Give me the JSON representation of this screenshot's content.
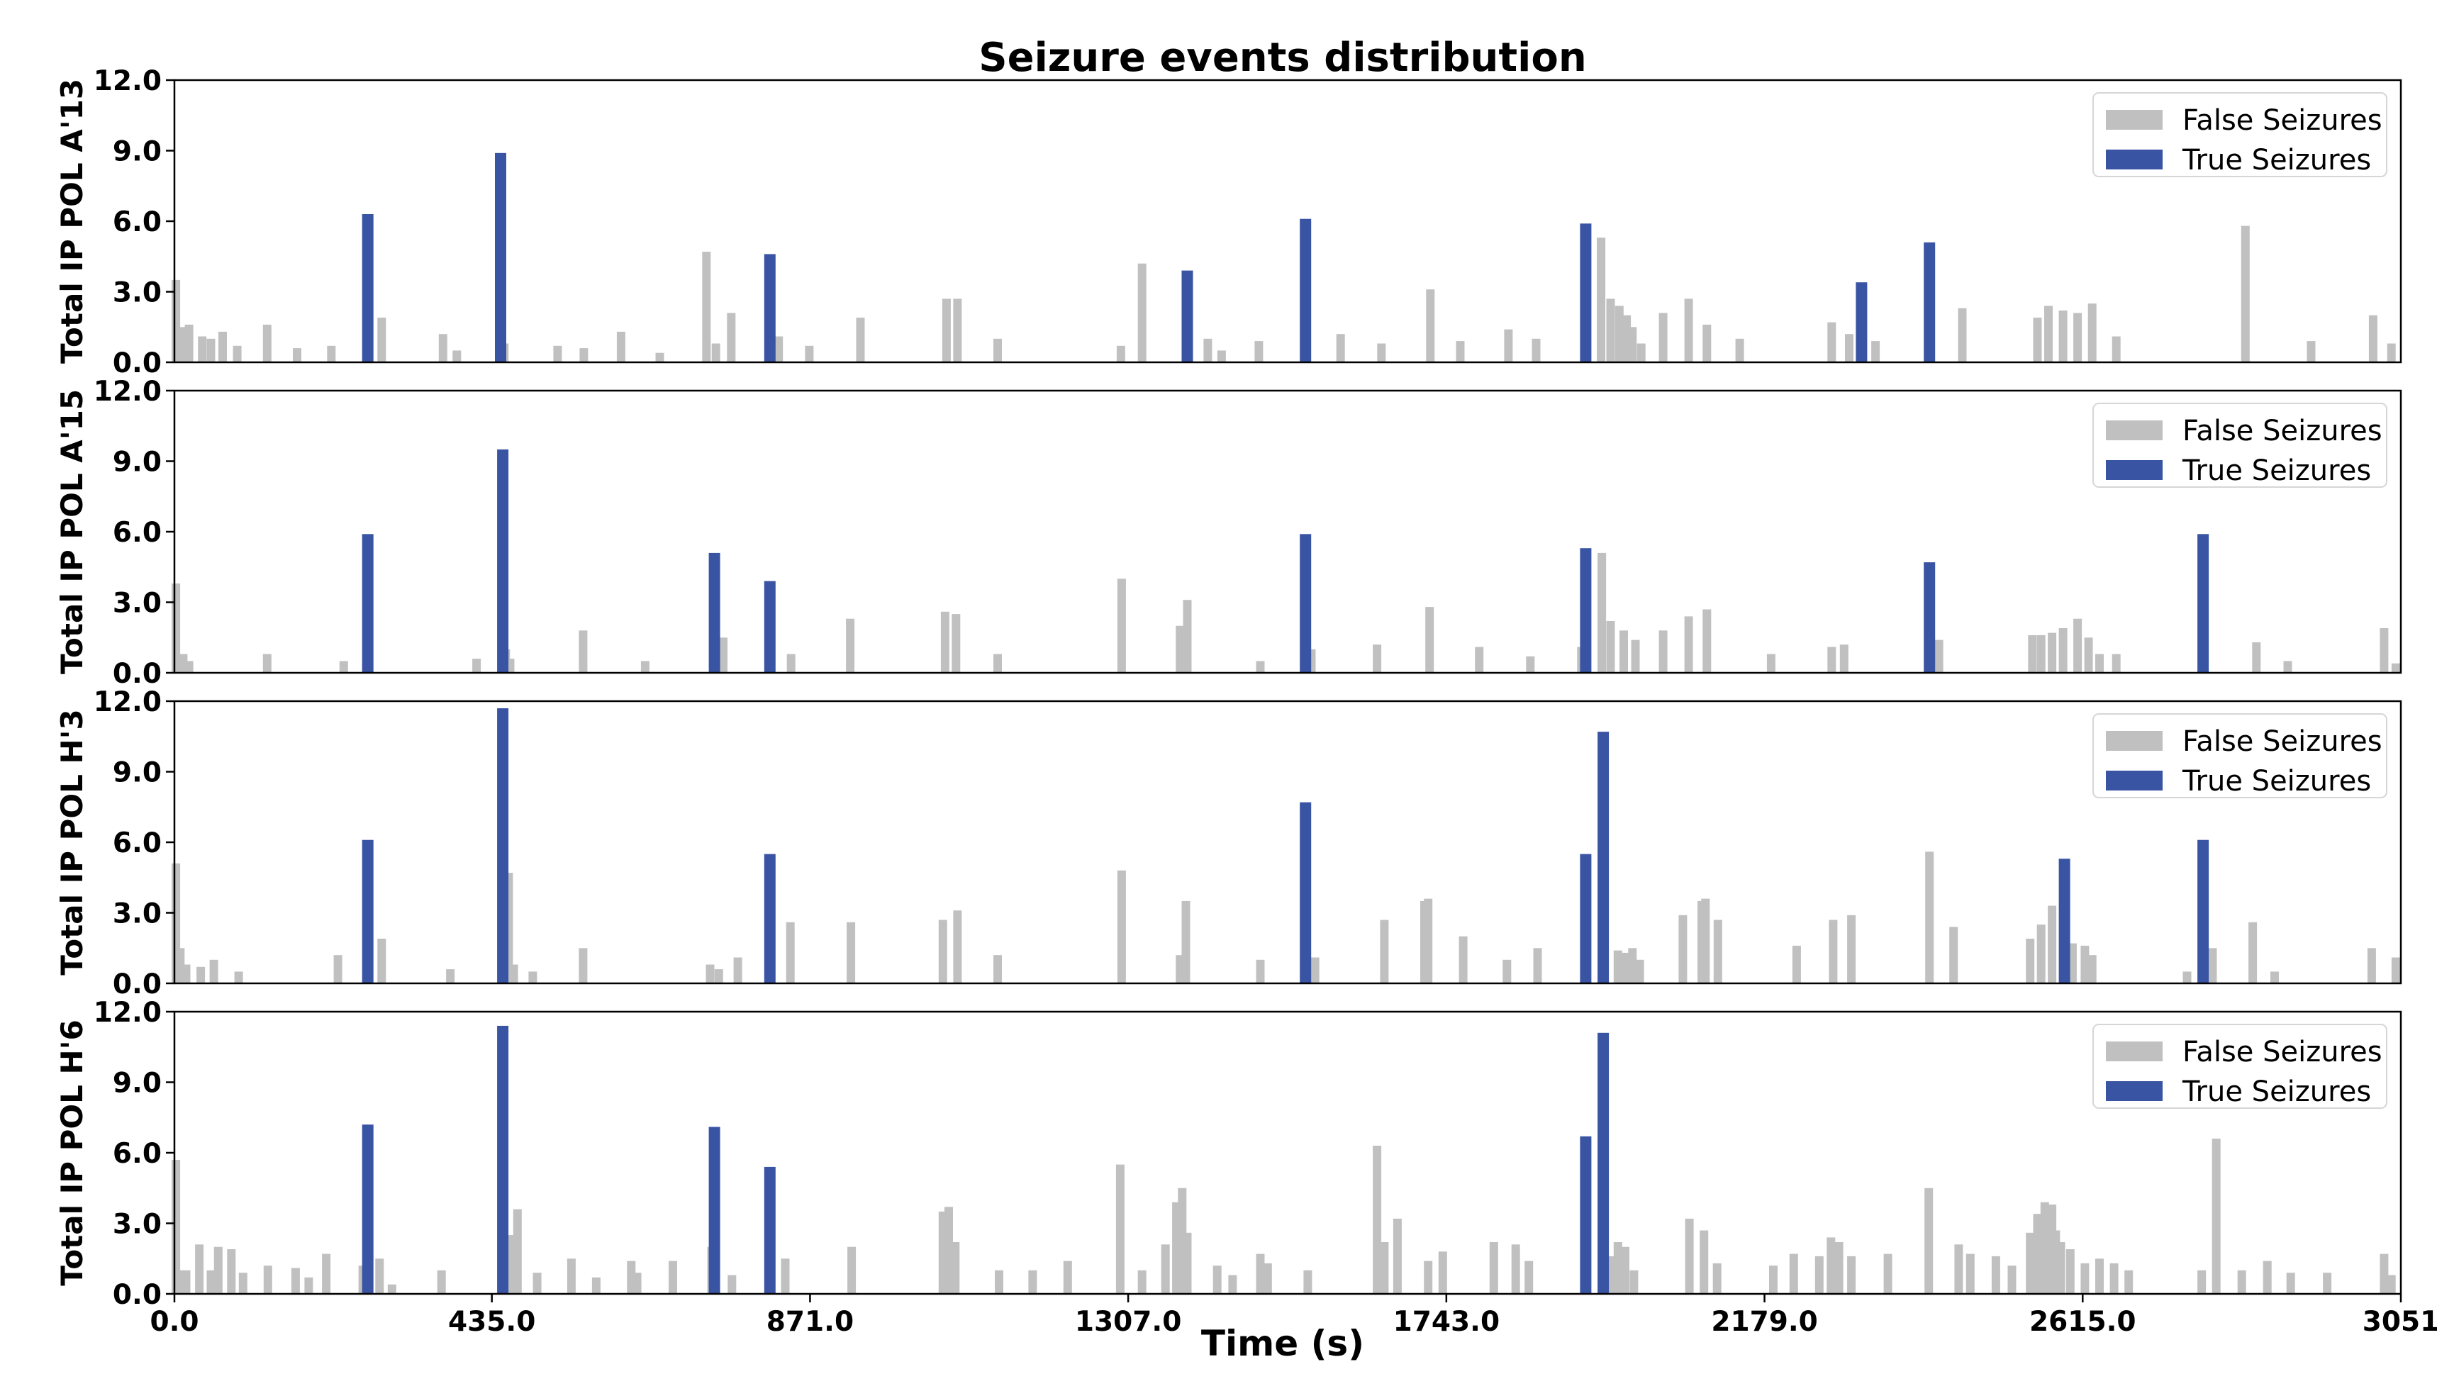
{
  "chart_data": {
    "type": "bar",
    "title": "Seizure events distribution",
    "xlabel": "Time (s)",
    "xlim": [
      0,
      3051
    ],
    "xticks": [
      "0.0",
      "435.0",
      "871.0",
      "1307.0",
      "1743.0",
      "2179.0",
      "2615.0",
      "3051"
    ],
    "ylim": [
      0,
      12
    ],
    "yticks": [
      "0.0",
      "3.0",
      "6.0",
      "9.0",
      "12.0"
    ],
    "grid": false,
    "legend_position": "top-right",
    "legend": [
      "False Seizures",
      "True Seizures"
    ],
    "colors": {
      "false": "#c0c0c0",
      "true": "#3a54a4"
    },
    "subplots": [
      {
        "ylabel": "Total IP POL A'13",
        "true_seizures": {
          "x": [
            265,
            447,
            816,
            1388,
            1550,
            1934,
            2312,
            2405
          ],
          "values": [
            6.3,
            8.9,
            4.6,
            3.9,
            6.1,
            5.9,
            3.4,
            5.1
          ]
        },
        "false_seizures": {
          "x": [
            4,
            14,
            22,
            40,
            52,
            68,
            88,
            129,
            170,
            217,
            286,
            370,
            389,
            454,
            527,
            563,
            614,
            667,
            731,
            744,
            765,
            830,
            872,
            942,
            1060,
            1075,
            1130,
            1299,
            1328,
            1418,
            1437,
            1488,
            1600,
            1656,
            1723,
            1764,
            1830,
            1868,
            1957,
            1970,
            1982,
            1992,
            2000,
            2012,
            2042,
            2077,
            2102,
            2147,
            2273,
            2297,
            2333,
            2452,
            2555,
            2570,
            2590,
            2610,
            2630,
            2663,
            2840,
            2930,
            3015,
            3040
          ],
          "values": [
            3.5,
            1.5,
            1.6,
            1.1,
            1.0,
            1.3,
            0.7,
            1.6,
            0.6,
            0.7,
            1.9,
            1.2,
            0.5,
            0.8,
            0.7,
            0.6,
            1.3,
            0.4,
            4.7,
            0.8,
            2.1,
            1.1,
            0.7,
            1.9,
            2.7,
            2.7,
            1.0,
            0.7,
            4.2,
            1.0,
            0.5,
            0.9,
            1.2,
            0.8,
            3.1,
            0.9,
            1.4,
            1.0,
            5.3,
            2.7,
            2.4,
            2.0,
            1.5,
            0.8,
            2.1,
            2.7,
            1.6,
            1.0,
            1.7,
            1.2,
            0.9,
            2.3,
            1.9,
            2.4,
            2.2,
            2.1,
            2.5,
            1.1,
            5.8,
            0.9,
            2.0,
            0.8
          ]
        }
      },
      {
        "ylabel": "Total IP POL A'15",
        "true_seizures": {
          "x": [
            265,
            450,
            740,
            816,
            1550,
            1934,
            2405,
            2780
          ],
          "values": [
            5.9,
            9.5,
            5.1,
            3.9,
            5.9,
            5.3,
            4.7,
            5.9
          ]
        },
        "false_seizures": {
          "x": [
            4,
            14,
            22,
            129,
            234,
            416,
            456,
            462,
            562,
            647,
            754,
            847,
            928,
            1058,
            1073,
            1130,
            1300,
            1380,
            1390,
            1490,
            1560,
            1650,
            1722,
            1790,
            1860,
            1930,
            1958,
            1970,
            1988,
            2004,
            2042,
            2077,
            2102,
            2190,
            2273,
            2290,
            2420,
            2548,
            2560,
            2575,
            2590,
            2610,
            2625,
            2640,
            2663,
            2855,
            2898,
            3030,
            3046
          ],
          "values": [
            3.8,
            0.8,
            0.5,
            0.8,
            0.5,
            0.6,
            1.0,
            0.6,
            1.8,
            0.5,
            1.5,
            0.8,
            2.3,
            2.6,
            2.5,
            0.8,
            4.0,
            2.0,
            3.1,
            0.5,
            1.0,
            1.2,
            2.8,
            1.1,
            0.7,
            1.1,
            5.1,
            2.2,
            1.8,
            1.4,
            1.8,
            2.4,
            2.7,
            0.8,
            1.1,
            1.2,
            1.4,
            1.6,
            1.6,
            1.7,
            1.9,
            2.3,
            1.5,
            0.8,
            0.8,
            1.3,
            0.5,
            1.9,
            0.4
          ]
        }
      },
      {
        "ylabel": "Total IP POL H'3",
        "true_seizures": {
          "x": [
            265,
            450,
            816,
            1550,
            1934,
            1958,
            2590,
            2780
          ],
          "values": [
            6.1,
            11.7,
            5.5,
            7.7,
            5.5,
            10.7,
            5.3,
            6.1
          ]
        },
        "false_seizures": {
          "x": [
            4,
            10,
            18,
            38,
            56,
            90,
            226,
            286,
            380,
            460,
            467,
            493,
            562,
            736,
            748,
            774,
            846,
            929,
            1055,
            1075,
            1130,
            1300,
            1380,
            1388,
            1490,
            1565,
            1660,
            1715,
            1720,
            1768,
            1828,
            1870,
            1980,
            1990,
            2000,
            2010,
            2069,
            2095,
            2100,
            2117,
            2225,
            2275,
            2300,
            2407,
            2440,
            2545,
            2560,
            2575,
            2603,
            2620,
            2630,
            2760,
            2795,
            2850,
            2880,
            3013,
            3046
          ],
          "values": [
            5.1,
            1.5,
            0.8,
            0.7,
            1.0,
            0.5,
            1.2,
            1.9,
            0.6,
            4.7,
            0.8,
            0.5,
            1.5,
            0.8,
            0.6,
            1.1,
            2.6,
            2.6,
            2.7,
            3.1,
            1.2,
            4.8,
            1.2,
            3.5,
            1.0,
            1.1,
            2.7,
            3.5,
            3.6,
            2.0,
            1.0,
            1.5,
            1.4,
            1.3,
            1.5,
            1.0,
            2.9,
            3.5,
            3.6,
            2.7,
            1.6,
            2.7,
            2.9,
            5.6,
            2.4,
            1.9,
            2.5,
            3.3,
            1.7,
            1.6,
            1.2,
            0.5,
            1.5,
            2.6,
            0.5,
            1.5,
            1.1
          ]
        }
      },
      {
        "ylabel": "Total IP POL H'6",
        "true_seizures": {
          "x": [
            265,
            450,
            740,
            816,
            1934,
            1958
          ],
          "values": [
            7.2,
            11.4,
            7.1,
            5.4,
            6.7,
            11.1
          ]
        },
        "false_seizures": {
          "x": [
            4,
            10,
            18,
            36,
            52,
            62,
            80,
            96,
            130,
            168,
            186,
            210,
            260,
            283,
            300,
            368,
            464,
            472,
            499,
            546,
            580,
            628,
            636,
            685,
            738,
            766,
            839,
            930,
            1055,
            1063,
            1072,
            1132,
            1178,
            1226,
            1298,
            1328,
            1360,
            1375,
            1383,
            1390,
            1431,
            1452,
            1490,
            1500,
            1555,
            1650,
            1660,
            1678,
            1720,
            1740,
            1810,
            1840,
            1858,
            1970,
            1980,
            1990,
            2002,
            2078,
            2098,
            2116,
            2193,
            2221,
            2256,
            2272,
            2283,
            2300,
            2350,
            2406,
            2447,
            2463,
            2498,
            2520,
            2545,
            2555,
            2565,
            2575,
            2580,
            2587,
            2600,
            2620,
            2640,
            2660,
            2680,
            2780,
            2800,
            2835,
            2870,
            2902,
            2952,
            3030,
            3040
          ],
          "values": [
            5.7,
            1.0,
            1.0,
            2.1,
            1.0,
            2.0,
            1.9,
            0.9,
            1.2,
            1.1,
            0.7,
            1.7,
            1.2,
            1.5,
            0.4,
            1.0,
            2.5,
            3.6,
            0.9,
            1.5,
            0.7,
            1.4,
            0.9,
            1.4,
            2.0,
            0.8,
            1.5,
            2.0,
            3.5,
            3.7,
            2.2,
            1.0,
            1.0,
            1.4,
            5.5,
            1.0,
            2.1,
            3.9,
            4.5,
            2.6,
            1.2,
            0.8,
            1.7,
            1.3,
            1.0,
            6.3,
            2.2,
            3.2,
            1.4,
            1.8,
            2.2,
            2.1,
            1.4,
            1.6,
            2.2,
            2.0,
            1.0,
            3.2,
            2.7,
            1.3,
            1.2,
            1.7,
            1.6,
            2.4,
            2.2,
            1.6,
            1.7,
            4.5,
            2.1,
            1.7,
            1.6,
            1.2,
            2.6,
            3.4,
            3.9,
            3.8,
            2.7,
            2.2,
            1.9,
            1.3,
            1.5,
            1.3,
            1.0,
            1.0,
            6.6,
            1.0,
            1.4,
            0.9,
            0.9,
            1.7,
            0.8
          ]
        }
      }
    ]
  }
}
